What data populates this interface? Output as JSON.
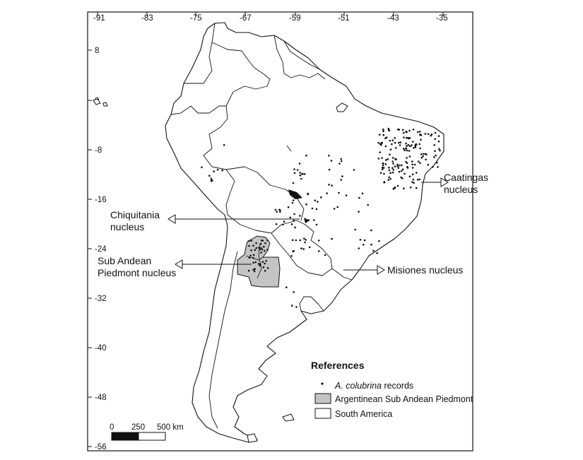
{
  "map": {
    "x_ticks": [
      "-91",
      "-83",
      "-75",
      "-67",
      "-59",
      "-51",
      "-43",
      "-35"
    ],
    "y_ticks": [
      "8",
      "0",
      "-8",
      "-16",
      "-24",
      "-32",
      "-40",
      "-48",
      "-56"
    ]
  },
  "annotations": {
    "caatingas_line1": "Caatingas",
    "caatingas_line2": "nucleus",
    "chiquitania_line1": "Chiquitania",
    "chiquitania_line2": "nucleus",
    "subandean_line1": "Sub Andean",
    "subandean_line2": "Piedmont nucleus",
    "misiones": "Misiones nucleus"
  },
  "legend": {
    "title": "References",
    "records_italic": "A. colubrina",
    "records_rest": " records",
    "piedmont": "Argentinean Sub Andean Piedmont",
    "south_america": "South America"
  },
  "scale_bar": {
    "label_0": "0",
    "label_250": "250",
    "label_500": "500 km"
  },
  "colors": {
    "piedmont_fill": "#c4c4c4",
    "line": "#111111",
    "background": "#ffffff"
  }
}
